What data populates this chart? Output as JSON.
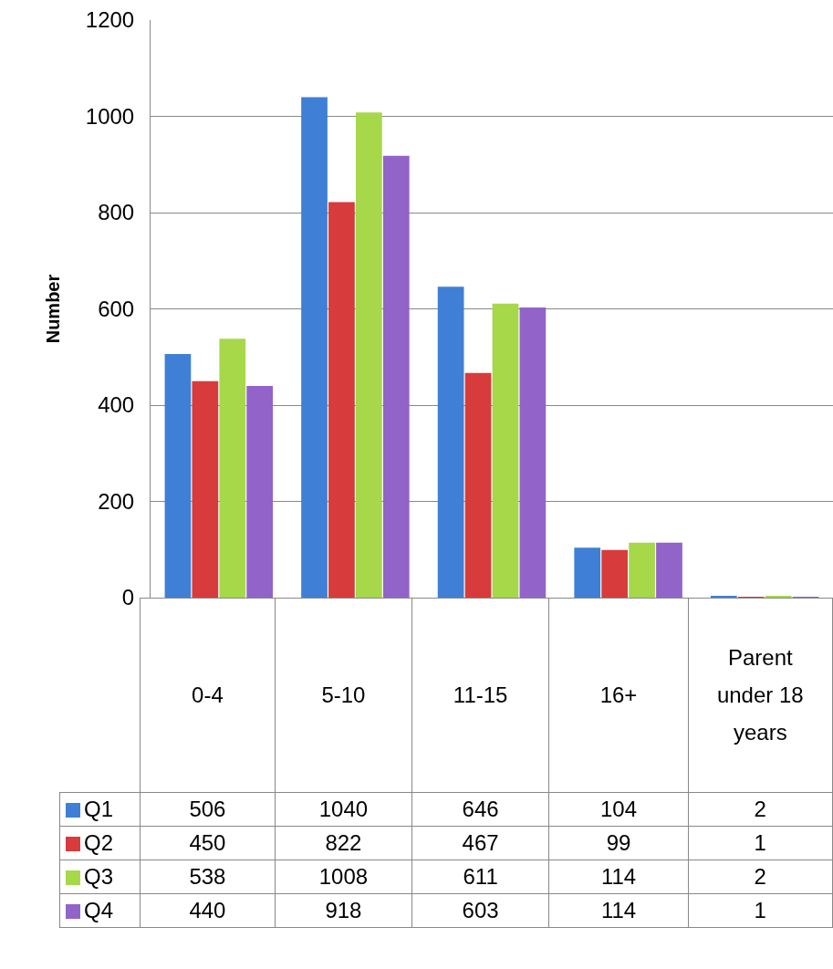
{
  "chart_data": {
    "type": "bar",
    "ylabel": "Number",
    "categories": [
      "0-4",
      "5-10",
      "11-15",
      "16+",
      "Parent under 18 years"
    ],
    "series": [
      {
        "name": "Q1",
        "color": "#3f7fd6",
        "values": [
          506,
          1040,
          646,
          104,
          2
        ]
      },
      {
        "name": "Q2",
        "color": "#d83b3b",
        "values": [
          450,
          822,
          467,
          99,
          1
        ]
      },
      {
        "name": "Q3",
        "color": "#a6d84a",
        "values": [
          538,
          1008,
          611,
          114,
          2
        ]
      },
      {
        "name": "Q4",
        "color": "#9263c9",
        "values": [
          440,
          918,
          603,
          114,
          1
        ]
      }
    ],
    "ylim": [
      0,
      1200
    ],
    "yticks": [
      0,
      200,
      400,
      600,
      800,
      1000,
      1200
    ],
    "grid": "y",
    "legend": "bottom",
    "data_labels": true
  }
}
